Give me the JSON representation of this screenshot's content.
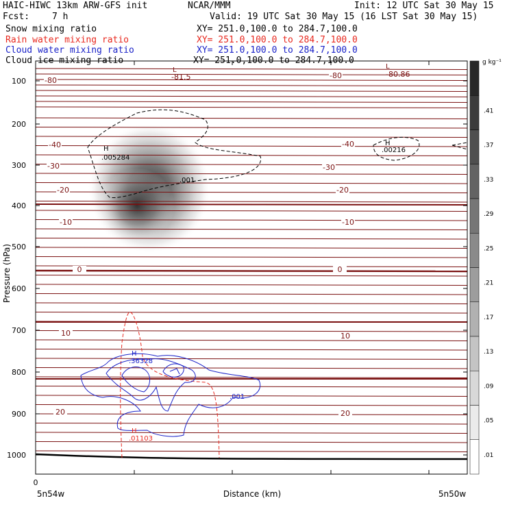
{
  "header": {
    "model": "HAIC-HIWC 13km ARW-GFS init",
    "org": "NCAR/MMM",
    "init": "Init: 12 UTC Sat 30 May 15",
    "fcst_label": "Fcst:",
    "fcst_value": "7 h",
    "valid": "Valid: 19 UTC Sat 30 May 15 (16 LST Sat 30 May 15)"
  },
  "legend": [
    {
      "name": "Snow mixing ratio",
      "xy": "XY= 251.0,100.0 to 284.7,100.0",
      "color": "#000000"
    },
    {
      "name": "Rain water mixing ratio",
      "xy": "XY= 251.0,100.0 to 284.7,100.0",
      "color": "#e8281e"
    },
    {
      "name": "Cloud water mixing ratio",
      "xy": "XY= 251.0,100.0 to 284.7,100.0",
      "color": "#1a22c8"
    },
    {
      "name": "Cloud ice mixing ratio",
      "xy": "XY= 251.0,100.0 to 284.7,100.0",
      "color": "#000000"
    }
  ],
  "chart_data": {
    "type": "heatmap",
    "ylabel": "Pressure (hPa)",
    "xlabel": "Distance (km)",
    "y_ticks": [
      "100",
      "200",
      "300",
      "400",
      "500",
      "600",
      "700",
      "800",
      "900",
      "1000"
    ],
    "x_origin_label": "0",
    "x_left_label": "5n54w",
    "x_right_label": "5n50w",
    "ylim": [
      1050,
      50
    ],
    "colorbar": {
      "unit": "g kg⁻¹",
      "levels": [
        ".41",
        ".37",
        ".33",
        ".29",
        ".25",
        ".21",
        ".17",
        ".13",
        ".09",
        ".05",
        ".01"
      ]
    },
    "temperature_contours": [
      {
        "label": "-80",
        "color": "#7a1010"
      },
      {
        "label": "-81.5",
        "color": "#7a1010"
      },
      {
        "label": "-80.86",
        "color": "#7a1010"
      },
      {
        "label": "-40",
        "color": "#7a1010"
      },
      {
        "label": "-30",
        "color": "#7a1010"
      },
      {
        "label": "-20",
        "color": "#7a1010"
      },
      {
        "label": "-10",
        "color": "#7a1010"
      },
      {
        "label": "0",
        "color": "#7a1010"
      },
      {
        "label": "10",
        "color": "#7a1010"
      },
      {
        "label": "20",
        "color": "#7a1010"
      }
    ],
    "extrema": [
      {
        "kind": "L",
        "value": "-81.5",
        "color": "#7a1010"
      },
      {
        "kind": "L",
        "value": "-80.86",
        "color": "#7a1010"
      },
      {
        "kind": "H",
        "value": ".005284",
        "color": "#000000"
      },
      {
        "kind": "H",
        "value": ".00216",
        "color": "#000000"
      },
      {
        "kind": "H",
        "value": ".36328",
        "color": "#1a22c8"
      },
      {
        "kind": "H",
        "value": ".01103",
        "color": "#e8281e"
      }
    ],
    "contour_labels": [
      {
        "value": ".001",
        "color": "#000000"
      },
      {
        "value": ".001",
        "color": "#1a22c8"
      }
    ],
    "snow_max": 0.41,
    "ice_max": 0.005284,
    "cloud_water_max": 0.36328,
    "rain_max": 0.01103
  }
}
